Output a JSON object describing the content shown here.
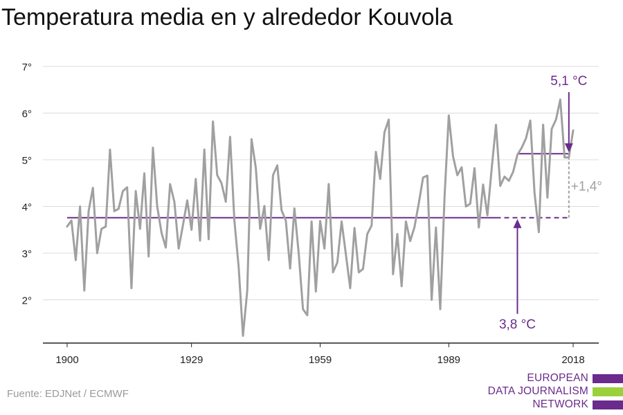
{
  "chart_data": {
    "type": "line",
    "title": "Temperatura media en y alrededor Kouvola",
    "xlabel": "",
    "ylabel": "",
    "xlim": [
      1900,
      2018
    ],
    "ylim": [
      1.0,
      7.0
    ],
    "x_ticks": [
      {
        "value": 1900,
        "label": "1900"
      },
      {
        "value": 1929,
        "label": "1929"
      },
      {
        "value": 1959,
        "label": "1959"
      },
      {
        "value": 1989,
        "label": "1989"
      },
      {
        "value": 2018,
        "label": "2018"
      }
    ],
    "y_ticks": [
      {
        "value": 2,
        "label": "2°"
      },
      {
        "value": 3,
        "label": "3°"
      },
      {
        "value": 4,
        "label": "4°"
      },
      {
        "value": 5,
        "label": "5°"
      },
      {
        "value": 6,
        "label": "6°"
      },
      {
        "value": 7,
        "label": "7°"
      }
    ],
    "grid": true,
    "series": [
      {
        "color": "#a0a0a0",
        "x": [
          1900,
          1901,
          1902,
          1903,
          1904,
          1905,
          1906,
          1907,
          1908,
          1909,
          1910,
          1911,
          1912,
          1913,
          1914,
          1915,
          1916,
          1917,
          1918,
          1919,
          1920,
          1921,
          1922,
          1923,
          1924,
          1925,
          1926,
          1927,
          1928,
          1929,
          1930,
          1931,
          1932,
          1933,
          1934,
          1935,
          1936,
          1937,
          1938,
          1939,
          1940,
          1941,
          1942,
          1943,
          1944,
          1945,
          1946,
          1947,
          1948,
          1949,
          1950,
          1951,
          1952,
          1953,
          1954,
          1955,
          1956,
          1957,
          1958,
          1959,
          1960,
          1961,
          1962,
          1963,
          1964,
          1965,
          1966,
          1967,
          1968,
          1969,
          1970,
          1971,
          1972,
          1973,
          1974,
          1975,
          1976,
          1977,
          1978,
          1979,
          1980,
          1981,
          1982,
          1983,
          1984,
          1985,
          1986,
          1987,
          1988,
          1989,
          1990,
          1991,
          1992,
          1993,
          1994,
          1995,
          1996,
          1997,
          1998,
          1999,
          2000,
          2001,
          2002,
          2003,
          2004,
          2005,
          2006,
          2007,
          2008,
          2009,
          2010,
          2011,
          2012,
          2013,
          2014,
          2015,
          2016,
          2017,
          2018
        ],
        "values": [
          3.57,
          3.7,
          2.85,
          4.0,
          2.2,
          3.9,
          4.4,
          3.0,
          3.52,
          3.57,
          5.22,
          3.9,
          3.95,
          4.33,
          4.41,
          2.25,
          4.33,
          3.52,
          4.71,
          2.93,
          5.26,
          4.0,
          3.44,
          3.12,
          4.48,
          4.1,
          3.1,
          3.6,
          4.13,
          3.5,
          4.59,
          3.27,
          5.22,
          3.3,
          5.82,
          4.67,
          4.5,
          4.1,
          5.49,
          3.7,
          2.7,
          1.23,
          2.2,
          5.44,
          4.82,
          3.52,
          4.01,
          2.85,
          4.67,
          4.88,
          3.92,
          3.7,
          2.67,
          3.96,
          3.0,
          1.8,
          1.67,
          3.68,
          2.18,
          3.69,
          3.1,
          4.48,
          2.59,
          2.8,
          3.68,
          2.97,
          2.25,
          3.54,
          2.59,
          2.66,
          3.41,
          3.59,
          5.17,
          4.59,
          5.59,
          5.86,
          2.55,
          3.41,
          2.29,
          3.68,
          3.26,
          3.56,
          4.07,
          4.62,
          4.66,
          2.0,
          3.55,
          1.8,
          4.2,
          5.95,
          5.07,
          4.67,
          4.84,
          4.0,
          4.06,
          4.82,
          3.55,
          4.47,
          3.81,
          4.81,
          5.75,
          4.44,
          4.64,
          4.55,
          4.74,
          5.11,
          5.26,
          5.46,
          5.84,
          4.29,
          3.45,
          5.75,
          4.19,
          5.66,
          5.86,
          6.29,
          5.05,
          5.05,
          5.63
        ]
      }
    ],
    "reference_lines": [
      {
        "color": "#6a2b8c",
        "x_start": 1900,
        "x_end": 2000,
        "value": 3.76,
        "style": "solid"
      },
      {
        "color": "#6a2b8c",
        "x_start": 2000,
        "x_end": 2017,
        "value": 3.76,
        "style": "dashed"
      },
      {
        "color": "#6a2b8c",
        "x_start": 2005,
        "x_end": 2017,
        "value": 5.13,
        "style": "solid"
      }
    ],
    "annotations": {
      "baseline": {
        "label": "3,8 °C",
        "color": "#6a2b8c",
        "arrow_x": 2005,
        "arrow_from": 1.7,
        "arrow_to": 3.76
      },
      "recent": {
        "label": "5,1 °C",
        "color": "#6a2b8c",
        "arrow_x": 2017,
        "arrow_from": 6.45,
        "arrow_to": 5.13
      },
      "difference": {
        "label": "+1,4°",
        "color": "#a0a0a0",
        "x": 2017,
        "from": 3.76,
        "to": 5.13
      }
    }
  },
  "footer": {
    "source": "Fuente: EDJNet / ECMWF"
  },
  "logo": {
    "lines": [
      "EUROPEAN",
      "DATA JOURNALISM",
      "NETWORK"
    ],
    "bar_colors": [
      "#6a2b8c",
      "#9ad13a",
      "#6a2b8c"
    ]
  }
}
